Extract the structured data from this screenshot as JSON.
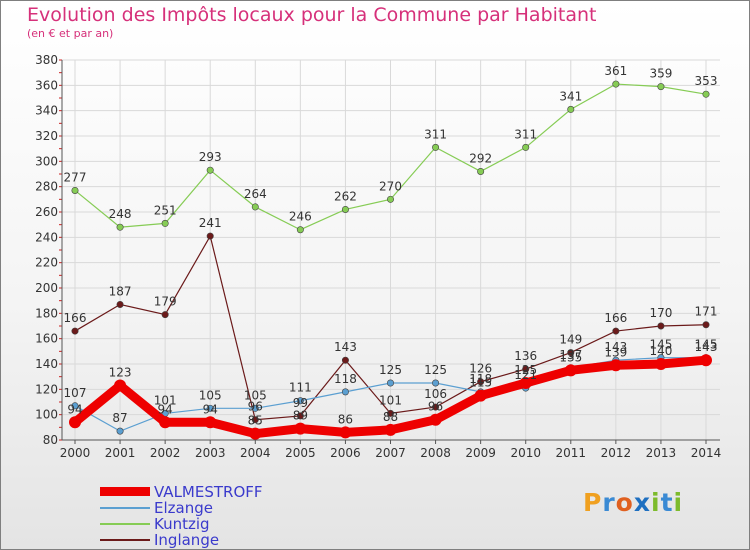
{
  "title": "Evolution des Impôts locaux pour la Commune par Habitant",
  "subtitle": "(en € et par an)",
  "logo": "Proxiti",
  "chart_data": {
    "type": "line",
    "title": "Evolution des Impôts locaux pour la Commune par Habitant",
    "subtitle": "(en € et par an)",
    "x": [
      "2000",
      "2001",
      "2002",
      "2003",
      "2004",
      "2005",
      "2006",
      "2007",
      "2008",
      "2009",
      "2010",
      "2011",
      "2012",
      "2013",
      "2014"
    ],
    "ylim": [
      80,
      380
    ],
    "yticks": [
      80,
      100,
      120,
      140,
      160,
      180,
      200,
      220,
      240,
      260,
      280,
      300,
      320,
      340,
      360,
      380
    ],
    "grid": true,
    "legend_position": "bottom-left",
    "series": [
      {
        "name": "VALMESTROFF",
        "color": "#ee0000",
        "values": [
          94,
          123,
          94,
          94,
          85,
          89,
          86,
          88,
          96,
          115,
          125,
          135,
          139,
          140,
          143
        ]
      },
      {
        "name": "Elzange",
        "color": "#5b9fd1",
        "values": [
          107,
          87,
          101,
          105,
          105,
          111,
          118,
          125,
          125,
          118,
          121,
          137,
          143,
          145,
          145
        ]
      },
      {
        "name": "Kuntzig",
        "color": "#86cc55",
        "values": [
          277,
          248,
          251,
          293,
          264,
          246,
          262,
          270,
          311,
          292,
          311,
          341,
          361,
          359,
          353
        ]
      },
      {
        "name": "Inglange",
        "color": "#6b1a1a",
        "values": [
          166,
          187,
          179,
          241,
          96,
          99,
          143,
          101,
          106,
          126,
          136,
          149,
          166,
          170,
          171
        ]
      }
    ],
    "label_series_order": [
      "Kuntzig",
      "Inglange",
      "Elzange",
      "VALMESTROFF"
    ]
  },
  "colors": {
    "title": "#d6307a",
    "axis_text": "#333333",
    "legend_text": "#3a3acc",
    "grid": "#d9d9d9"
  }
}
